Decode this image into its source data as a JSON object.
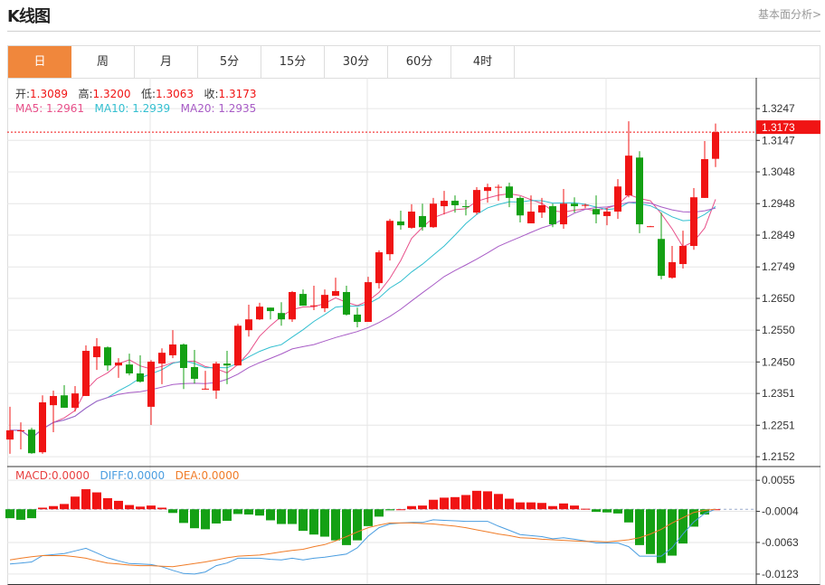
{
  "header": {
    "title": "K线图",
    "link": "基本面分析>"
  },
  "tabs": [
    {
      "label": "日",
      "active": true
    },
    {
      "label": "周"
    },
    {
      "label": "月"
    },
    {
      "label": "5分"
    },
    {
      "label": "15分"
    },
    {
      "label": "30分"
    },
    {
      "label": "60分"
    },
    {
      "label": "4时"
    }
  ],
  "colors": {
    "up": "#f01414",
    "down": "#14a014",
    "ma5": "#e8508a",
    "ma10": "#33bfd0",
    "ma20": "#a85cc6",
    "macd": "#e84040",
    "diff": "#4a9de0",
    "dea": "#f07c28",
    "accent": "#f0873c"
  },
  "ohlc_legend": {
    "open_label": "开:",
    "open": "1.3089",
    "high_label": "高:",
    "high": "1.3200",
    "low_label": "低:",
    "low": "1.3063",
    "close_label": "收:",
    "close": "1.3173"
  },
  "ma_legend": {
    "ma5": "MA5: 1.2961",
    "ma10": "MA10: 1.2939",
    "ma20": "MA20: 1.2935"
  },
  "macd_legend": {
    "macd": "MACD:0.0000",
    "diff": "DIFF:0.0000",
    "dea": "DEA:0.0000"
  },
  "chart_data": [
    {
      "type": "candlestick",
      "price_range": [
        1.2121,
        1.3344
      ],
      "y_ticks": [
        "1.3247",
        "1.3147",
        "1.3048",
        "1.2948",
        "1.2849",
        "1.2749",
        "1.2650",
        "1.2550",
        "1.2450",
        "1.2351",
        "1.2251",
        "1.2152"
      ],
      "current_price": "1.3173",
      "grid": true,
      "ohlc": [
        [
          1.2206,
          1.2309,
          1.2161,
          1.2235
        ],
        [
          1.2232,
          1.226,
          1.2175,
          1.2235
        ],
        [
          1.2237,
          1.2243,
          1.2161,
          1.2163
        ],
        [
          1.2166,
          1.2345,
          1.2161,
          1.2323
        ],
        [
          1.2314,
          1.236,
          1.2229,
          1.2343
        ],
        [
          1.2345,
          1.2377,
          1.2306,
          1.2306
        ],
        [
          1.2306,
          1.2374,
          1.2294,
          1.2351
        ],
        [
          1.2343,
          1.2502,
          1.2343,
          1.2485
        ],
        [
          1.2465,
          1.2525,
          1.2425,
          1.2499
        ],
        [
          1.2496,
          1.2499,
          1.2422,
          1.2439
        ],
        [
          1.2439,
          1.2462,
          1.24,
          1.2448
        ],
        [
          1.2442,
          1.2476,
          1.2408,
          1.2414
        ],
        [
          1.2414,
          1.2471,
          1.2385,
          1.2388
        ],
        [
          1.2309,
          1.2456,
          1.2252,
          1.2451
        ],
        [
          1.2445,
          1.2493,
          1.238,
          1.2479
        ],
        [
          1.2471,
          1.255,
          1.2462,
          1.2505
        ],
        [
          1.2505,
          1.2508,
          1.2365,
          1.2431
        ],
        [
          1.2434,
          1.2488,
          1.2382,
          1.2397
        ],
        [
          1.2365,
          1.2422,
          1.2363,
          1.2366
        ],
        [
          1.236,
          1.2451,
          1.2334,
          1.2445
        ],
        [
          1.2445,
          1.2485,
          1.238,
          1.2439
        ],
        [
          1.2439,
          1.257,
          1.2439,
          1.2564
        ],
        [
          1.255,
          1.263,
          1.253,
          1.2584
        ],
        [
          1.2584,
          1.2636,
          1.2582,
          1.2624
        ],
        [
          1.2621,
          1.2621,
          1.2584,
          1.261
        ],
        [
          1.2604,
          1.2638,
          1.2564,
          1.2584
        ],
        [
          1.2584,
          1.2673,
          1.2576,
          1.267
        ],
        [
          1.2664,
          1.2678,
          1.2627,
          1.2627
        ],
        [
          1.2627,
          1.269,
          1.2613,
          1.2628
        ],
        [
          1.2619,
          1.2678,
          1.2607,
          1.2661
        ],
        [
          1.2658,
          1.2715,
          1.2658,
          1.2673
        ],
        [
          1.267,
          1.269,
          1.2596,
          1.2599
        ],
        [
          1.2599,
          1.2621,
          1.2559,
          1.2576
        ],
        [
          1.2576,
          1.2718,
          1.2576,
          1.2701
        ],
        [
          1.2698,
          1.2801,
          1.2681,
          1.2795
        ],
        [
          1.2789,
          1.29,
          1.2769,
          1.2894
        ],
        [
          1.2892,
          1.2926,
          1.2866,
          1.288
        ],
        [
          1.2872,
          1.2946,
          1.2869,
          1.2923
        ],
        [
          1.2909,
          1.2948,
          1.2863,
          1.2874
        ],
        [
          1.2874,
          1.2966,
          1.2872,
          1.2948
        ],
        [
          1.294,
          1.2988,
          1.2914,
          1.2957
        ],
        [
          1.2957,
          1.2974,
          1.292,
          1.2943
        ],
        [
          1.294,
          1.296,
          1.2911,
          1.2937
        ],
        [
          1.292,
          1.3,
          1.2914,
          1.2991
        ],
        [
          1.2988,
          1.3011,
          1.2951,
          1.3
        ],
        [
          1.3,
          1.3008,
          1.2957,
          1.3001
        ],
        [
          1.3002,
          1.3014,
          1.2937,
          1.2966
        ],
        [
          1.2966,
          1.2971,
          1.2889,
          1.2911
        ],
        [
          1.2886,
          1.2974,
          1.2886,
          1.2923
        ],
        [
          1.292,
          1.2966,
          1.2903,
          1.2943
        ],
        [
          1.294,
          1.2948,
          1.2874,
          1.2883
        ],
        [
          1.2883,
          1.2994,
          1.2869,
          1.2948
        ],
        [
          1.2948,
          1.2968,
          1.292,
          1.294
        ],
        [
          1.2943,
          1.2948,
          1.2934,
          1.2944
        ],
        [
          1.2931,
          1.2974,
          1.2886,
          1.2914
        ],
        [
          1.2909,
          1.2934,
          1.288,
          1.2923
        ],
        [
          1.2923,
          1.3025,
          1.29,
          1.3002
        ],
        [
          1.2974,
          1.3207,
          1.2968,
          1.3099
        ],
        [
          1.3093,
          1.3113,
          1.2855,
          1.2883
        ],
        [
          1.2877,
          1.2878,
          1.2876,
          1.2877
        ],
        [
          1.2837,
          1.292,
          1.271,
          1.2721
        ],
        [
          1.2715,
          1.2815,
          1.2712,
          1.2764
        ],
        [
          1.2758,
          1.2863,
          1.2744,
          1.2815
        ],
        [
          1.2815,
          1.2997,
          1.2803,
          1.2968
        ],
        [
          1.2966,
          1.3145,
          1.2966,
          1.3088
        ],
        [
          1.3089,
          1.32,
          1.3063,
          1.3173
        ]
      ],
      "ma_periods": [
        5,
        10,
        20
      ]
    },
    {
      "type": "macd",
      "value_range": [
        -0.0142,
        0.0081
      ],
      "y_ticks": [
        "0.0055",
        "-0.0004",
        "-0.0063",
        "-0.0123"
      ],
      "histogram": [
        -0.0017,
        -0.002,
        -0.0017,
        0.0003,
        0.0006,
        0.001,
        0.0024,
        0.0038,
        0.0032,
        0.0021,
        0.0016,
        0.0008,
        0.0005,
        0.0007,
        0.0003,
        -0.0007,
        -0.0026,
        -0.0036,
        -0.0038,
        -0.0027,
        -0.0022,
        -0.0009,
        -0.001,
        -0.0012,
        -0.0021,
        -0.0028,
        -0.0028,
        -0.0041,
        -0.0048,
        -0.0052,
        -0.0059,
        -0.0068,
        -0.0059,
        -0.0032,
        -0.0014,
        -0.0002,
        0.0,
        0.0006,
        0.0007,
        0.0018,
        0.0022,
        0.0023,
        0.0027,
        0.0035,
        0.0034,
        0.0029,
        0.002,
        0.0013,
        0.0013,
        0.0012,
        0.0006,
        0.0011,
        0.0007,
        0.0001,
        -0.0005,
        -0.0006,
        -0.0008,
        -0.0025,
        -0.0068,
        -0.0085,
        -0.0102,
        -0.0088,
        -0.0065,
        -0.0033,
        -0.001,
        0.0
      ],
      "diff": [
        -0.0104,
        -0.0102,
        -0.01,
        -0.0088,
        -0.0086,
        -0.0084,
        -0.0079,
        -0.0074,
        -0.0083,
        -0.0092,
        -0.0098,
        -0.0103,
        -0.0104,
        -0.0105,
        -0.0109,
        -0.0116,
        -0.0122,
        -0.0123,
        -0.0119,
        -0.0107,
        -0.0102,
        -0.0093,
        -0.0093,
        -0.0093,
        -0.0095,
        -0.0096,
        -0.0093,
        -0.0096,
        -0.0093,
        -0.0091,
        -0.0088,
        -0.0085,
        -0.0073,
        -0.0051,
        -0.0035,
        -0.0028,
        -0.0026,
        -0.0025,
        -0.0025,
        -0.002,
        -0.0021,
        -0.0022,
        -0.0023,
        -0.0023,
        -0.0023,
        -0.0032,
        -0.004,
        -0.0048,
        -0.005,
        -0.0052,
        -0.0056,
        -0.0054,
        -0.0057,
        -0.006,
        -0.0064,
        -0.0064,
        -0.0064,
        -0.0071,
        -0.0089,
        -0.0089,
        -0.0089,
        -0.0073,
        -0.0047,
        -0.0024,
        -0.0008,
        0.0
      ],
      "dea": [
        -0.0096,
        -0.0093,
        -0.009,
        -0.0088,
        -0.0088,
        -0.0088,
        -0.009,
        -0.0093,
        -0.0098,
        -0.0102,
        -0.0104,
        -0.0106,
        -0.0107,
        -0.0107,
        -0.0108,
        -0.0109,
        -0.0106,
        -0.0103,
        -0.01,
        -0.0096,
        -0.0092,
        -0.0089,
        -0.0088,
        -0.0087,
        -0.0084,
        -0.0081,
        -0.0078,
        -0.0076,
        -0.0071,
        -0.0067,
        -0.006,
        -0.0052,
        -0.0043,
        -0.0035,
        -0.003,
        -0.0026,
        -0.0026,
        -0.0026,
        -0.0027,
        -0.0028,
        -0.003,
        -0.0032,
        -0.0035,
        -0.0039,
        -0.0043,
        -0.0047,
        -0.005,
        -0.0054,
        -0.0055,
        -0.0057,
        -0.0058,
        -0.0059,
        -0.006,
        -0.0061,
        -0.0061,
        -0.0062,
        -0.006,
        -0.0058,
        -0.0054,
        -0.0047,
        -0.0038,
        -0.0026,
        -0.0016,
        -0.0006,
        -0.0002,
        0.0
      ]
    }
  ]
}
